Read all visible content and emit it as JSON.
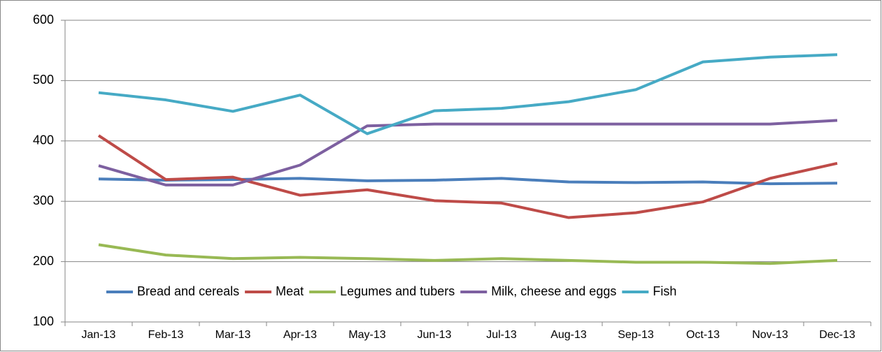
{
  "chart_data": {
    "type": "line",
    "categories": [
      "Jan-13",
      "Feb-13",
      "Mar-13",
      "Apr-13",
      "May-13",
      "Jun-13",
      "Jul-13",
      "Aug-13",
      "Sep-13",
      "Oct-13",
      "Nov-13",
      "Dec-13"
    ],
    "series": [
      {
        "name": "Bread and cereals",
        "color": "#4a7ebb",
        "values": [
          337,
          335,
          336,
          338,
          334,
          335,
          338,
          332,
          331,
          332,
          329,
          330
        ]
      },
      {
        "name": "Meat",
        "color": "#be4b48",
        "values": [
          409,
          336,
          340,
          310,
          319,
          301,
          297,
          273,
          281,
          299,
          338,
          363
        ]
      },
      {
        "name": "Legumes and tubers",
        "color": "#98b954",
        "values": [
          228,
          211,
          205,
          207,
          205,
          202,
          205,
          202,
          199,
          199,
          197,
          202
        ]
      },
      {
        "name": "Milk, cheese and eggs",
        "color": "#7d60a0",
        "values": [
          359,
          327,
          327,
          360,
          425,
          428,
          428,
          428,
          428,
          428,
          428,
          434
        ]
      },
      {
        "name": "Fish",
        "color": "#46aac5",
        "values": [
          480,
          468,
          449,
          476,
          412,
          450,
          454,
          465,
          485,
          531,
          539,
          543
        ]
      }
    ],
    "ylim": [
      100,
      600
    ],
    "yticks": [
      100,
      200,
      300,
      400,
      500,
      600
    ],
    "grid": true,
    "legend": "bottom"
  }
}
